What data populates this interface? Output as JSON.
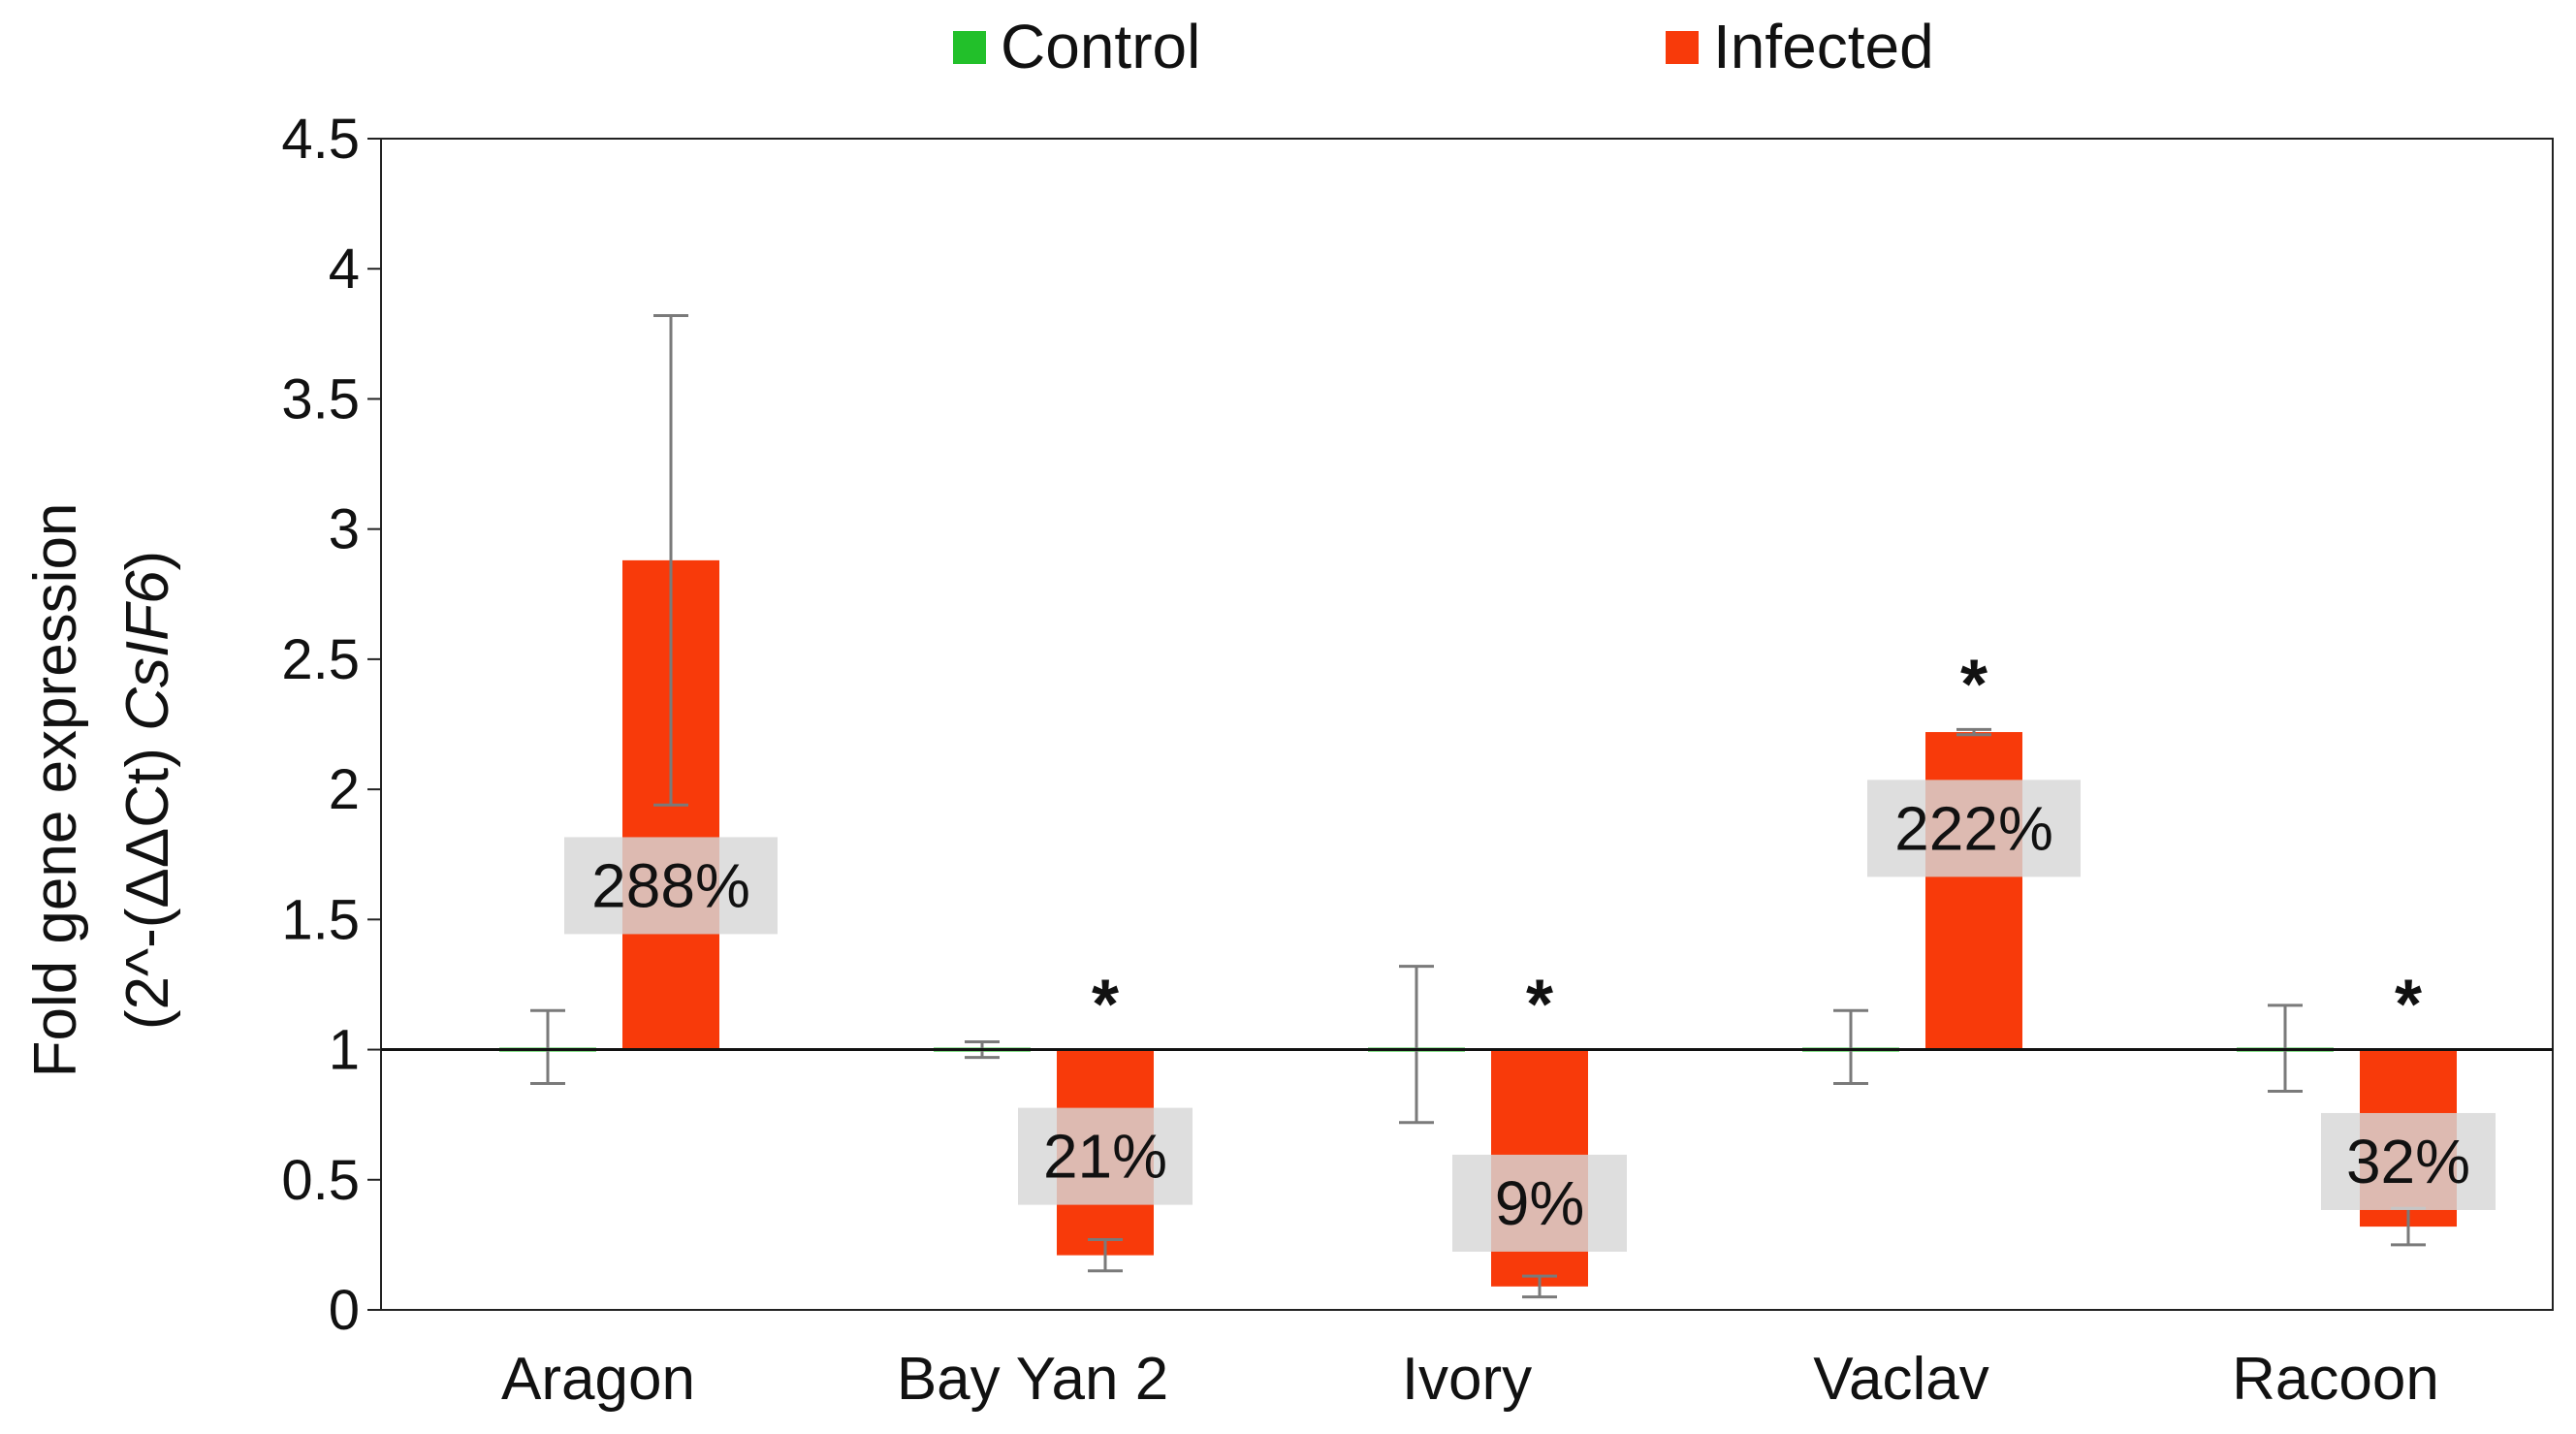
{
  "chart_data": {
    "type": "bar",
    "title": "",
    "xlabel": "",
    "ylabel_line1": "Fold gene expression",
    "ylabel_line2_prefix": "(2^-(ΔΔCt) ",
    "ylabel_line2_gene": "CsIF6",
    "ylabel_line2_suffix": ")",
    "ylim": [
      0,
      4.5
    ],
    "baseline": 1,
    "yticks": [
      0,
      0.5,
      1,
      1.5,
      2,
      2.5,
      3,
      3.5,
      4,
      4.5
    ],
    "ytick_labels": [
      "0",
      "0.5",
      "1",
      "1.5",
      "2",
      "2.5",
      "3",
      "3.5",
      "4",
      "4.5"
    ],
    "categories": [
      "Aragon",
      "Bay Yan 2",
      "Ivory",
      "Vaclav",
      "Racoon"
    ],
    "legend_position": "top-center",
    "series": [
      {
        "name": "Control",
        "color": "#22c02a",
        "values": [
          1.0,
          1.0,
          1.01,
          1.0,
          1.0
        ],
        "err_low": [
          0.87,
          0.97,
          0.72,
          0.87,
          0.84
        ],
        "err_high": [
          1.15,
          1.03,
          1.32,
          1.15,
          1.17
        ]
      },
      {
        "name": "Infected",
        "color": "#f83a0a",
        "values": [
          2.88,
          0.21,
          0.09,
          2.22,
          0.32
        ],
        "err_low": [
          1.94,
          0.15,
          0.05,
          2.21,
          0.25
        ],
        "err_high": [
          3.82,
          0.27,
          0.13,
          2.23,
          0.39
        ],
        "percent_labels": [
          "288%",
          "21%",
          "9%",
          "222%",
          "32%"
        ],
        "percent_label_values": [
          1.63,
          0.59,
          0.41,
          1.85,
          0.57
        ],
        "significance": [
          "",
          "*",
          "*",
          "*",
          "*"
        ]
      }
    ]
  }
}
